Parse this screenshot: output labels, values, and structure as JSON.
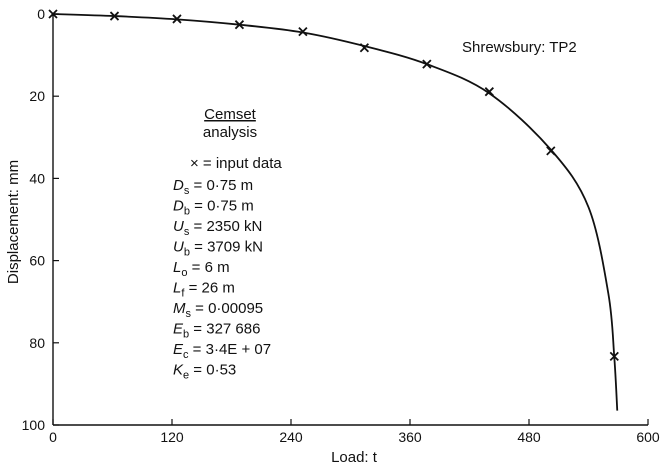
{
  "chart_data": {
    "type": "scatter",
    "title": "Shrewsbury: TP2",
    "xlabel": "Load: t",
    "ylabel": "Displacement: mm",
    "xlim": [
      0,
      600
    ],
    "ylim": [
      0,
      100
    ],
    "y_inverted": true,
    "xticks": [
      "0",
      "120",
      "240",
      "360",
      "480",
      "600"
    ],
    "yticks": [
      "0",
      "20",
      "40",
      "60",
      "80",
      "100"
    ],
    "grid": false,
    "series": [
      {
        "name": "input data",
        "marker": "x",
        "points": [
          {
            "x": 0,
            "y": 0
          },
          {
            "x": 62,
            "y": 0.5
          },
          {
            "x": 125,
            "y": 1.2
          },
          {
            "x": 188,
            "y": 2.6
          },
          {
            "x": 252,
            "y": 4.3
          },
          {
            "x": 314,
            "y": 8.2
          },
          {
            "x": 377,
            "y": 12.2
          },
          {
            "x": 440,
            "y": 18.9
          },
          {
            "x": 502,
            "y": 33.3
          },
          {
            "x": 566,
            "y": 83.3
          }
        ]
      },
      {
        "type": "line",
        "curve": [
          {
            "x": 0,
            "y": 0
          },
          {
            "x": 62,
            "y": 0.5
          },
          {
            "x": 125,
            "y": 1.3
          },
          {
            "x": 188,
            "y": 2.6
          },
          {
            "x": 252,
            "y": 4.5
          },
          {
            "x": 314,
            "y": 7.8
          },
          {
            "x": 377,
            "y": 12.2
          },
          {
            "x": 440,
            "y": 19.3
          },
          {
            "x": 502,
            "y": 33.0
          },
          {
            "x": 540,
            "y": 47.0
          },
          {
            "x": 560,
            "y": 68.0
          },
          {
            "x": 566,
            "y": 83.5
          },
          {
            "x": 569,
            "y": 96.5
          }
        ]
      }
    ],
    "annotations": {
      "heading_line1": "Cemset",
      "heading_line2": "analysis",
      "legend": "× = input data",
      "params": [
        {
          "sym": "D",
          "sub": "s",
          "value": " = 0·75 m"
        },
        {
          "sym": "D",
          "sub": "b",
          "value": " = 0·75 m"
        },
        {
          "sym": "U",
          "sub": "s",
          "value": " = 2350 kN"
        },
        {
          "sym": "U",
          "sub": "b",
          "value": " = 3709 kN"
        },
        {
          "sym": "L",
          "sub": "o",
          "value": " = 6 m"
        },
        {
          "sym": "L",
          "sub": "f",
          "value": " = 26 m"
        },
        {
          "sym": "M",
          "sub": "s",
          "value": " = 0·00095"
        },
        {
          "sym": "E",
          "sub": "b",
          "value": " = 327 686"
        },
        {
          "sym": "E",
          "sub": "c",
          "value": " = 3·4E + 07"
        },
        {
          "sym": "K",
          "sub": "e",
          "value": " = 0·53"
        }
      ]
    }
  }
}
